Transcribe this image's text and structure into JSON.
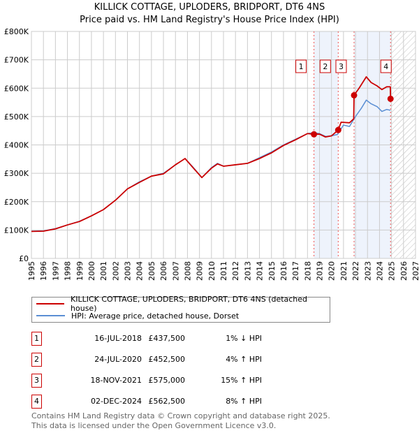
{
  "chart_data": {
    "type": "line",
    "title": "KILLICK COTTAGE, UPLODERS, BRIDPORT, DT6 4NS",
    "subtitle": "Price paid vs. HM Land Registry's House Price Index (HPI)",
    "xlim": [
      1995,
      2027
    ],
    "ylim": [
      0,
      800000
    ],
    "x_ticks": [
      "1995",
      "1996",
      "1997",
      "1998",
      "1999",
      "2000",
      "2001",
      "2002",
      "2003",
      "2004",
      "2005",
      "2006",
      "2007",
      "2008",
      "2009",
      "2010",
      "2011",
      "2012",
      "2013",
      "2014",
      "2015",
      "2016",
      "2017",
      "2018",
      "2019",
      "2020",
      "2021",
      "2022",
      "2023",
      "2024",
      "2025",
      "2026",
      "2027"
    ],
    "y_ticks": [
      {
        "v": 0,
        "label": "£0"
      },
      {
        "v": 100000,
        "label": "£100K"
      },
      {
        "v": 200000,
        "label": "£200K"
      },
      {
        "v": 300000,
        "label": "£300K"
      },
      {
        "v": 400000,
        "label": "£400K"
      },
      {
        "v": 500000,
        "label": "£500K"
      },
      {
        "v": 600000,
        "label": "£600K"
      },
      {
        "v": 700000,
        "label": "£700K"
      },
      {
        "v": 800000,
        "label": "£800K"
      }
    ],
    "grid": true,
    "shaded_spans": [
      [
        2018.54,
        2020.56
      ],
      [
        2021.88,
        2024.92
      ]
    ],
    "future_hatch_from": 2025,
    "series": [
      {
        "name": "KILLICK COTTAGE, UPLODERS, BRIDPORT, DT6 4NS (detached house)",
        "color": "#cc0000",
        "x": [
          1995,
          1996,
          1997,
          1998,
          1999,
          2000,
          2001,
          2002,
          2003,
          2004,
          2005,
          2006,
          2007,
          2007.8,
          2008.5,
          2009.2,
          2010,
          2010.5,
          2011,
          2012,
          2013,
          2014,
          2015,
          2016,
          2017,
          2018,
          2018.54,
          2019,
          2019.5,
          2020,
          2020.56,
          2020.8,
          2021.5,
          2021.85,
          2021.88,
          2022.3,
          2022.9,
          2023.3,
          2023.8,
          2024.2,
          2024.6,
          2024.9,
          2024.92
        ],
        "y": [
          95000,
          96000,
          104000,
          118000,
          130000,
          150000,
          172000,
          205000,
          245000,
          268000,
          290000,
          298000,
          330000,
          352000,
          318000,
          285000,
          318000,
          333000,
          325000,
          330000,
          335000,
          352000,
          372000,
          398000,
          418000,
          440000,
          437500,
          438000,
          428000,
          432000,
          452500,
          480000,
          478000,
          492000,
          575000,
          600000,
          640000,
          620000,
          608000,
          595000,
          605000,
          605000,
          562500
        ]
      },
      {
        "name": "HPI: Average price, detached house, Dorset",
        "color": "#5b8fd4",
        "x": [
          1995,
          1996,
          1997,
          1998,
          1999,
          2000,
          2001,
          2002,
          2003,
          2004,
          2005,
          2006,
          2007,
          2007.8,
          2008.5,
          2009.2,
          2010,
          2010.5,
          2011,
          2012,
          2013,
          2014,
          2015,
          2016,
          2017,
          2018,
          2018.5,
          2019,
          2019.5,
          2020,
          2020.5,
          2021,
          2021.5,
          2022,
          2022.5,
          2022.9,
          2023.3,
          2023.8,
          2024.2,
          2024.6,
          2024.92
        ],
        "y": [
          96000,
          97000,
          105000,
          118000,
          131000,
          150000,
          172000,
          205000,
          245000,
          270000,
          290000,
          300000,
          330000,
          352000,
          320000,
          285000,
          320000,
          335000,
          325000,
          330000,
          335000,
          355000,
          375000,
          400000,
          420000,
          440000,
          443000,
          440000,
          430000,
          432000,
          437000,
          470000,
          465000,
          500000,
          530000,
          558000,
          545000,
          535000,
          518000,
          525000,
          522000
        ]
      }
    ],
    "sales": [
      {
        "n": "1",
        "x": 2018.54,
        "y": 437500
      },
      {
        "n": "2",
        "x": 2020.56,
        "y": 452500
      },
      {
        "n": "3",
        "x": 2021.88,
        "y": 575000
      },
      {
        "n": "4",
        "x": 2024.92,
        "y": 562500
      }
    ]
  },
  "legend": {
    "property": "KILLICK COTTAGE, UPLODERS, BRIDPORT, DT6 4NS (detached house)",
    "hpi": "HPI: Average price, detached house, Dorset"
  },
  "transactions": [
    {
      "n": "1",
      "date": "16-JUL-2018",
      "price": "£437,500",
      "hpi": "1% ↓ HPI"
    },
    {
      "n": "2",
      "date": "24-JUL-2020",
      "price": "£452,500",
      "hpi": "4% ↑ HPI"
    },
    {
      "n": "3",
      "date": "18-NOV-2021",
      "price": "£575,000",
      "hpi": "15% ↑ HPI"
    },
    {
      "n": "4",
      "date": "02-DEC-2024",
      "price": "£562,500",
      "hpi": "8% ↑ HPI"
    }
  ],
  "footer": {
    "line1": "Contains HM Land Registry data © Crown copyright and database right 2025.",
    "line2": "This data is licensed under the Open Government Licence v3.0."
  }
}
